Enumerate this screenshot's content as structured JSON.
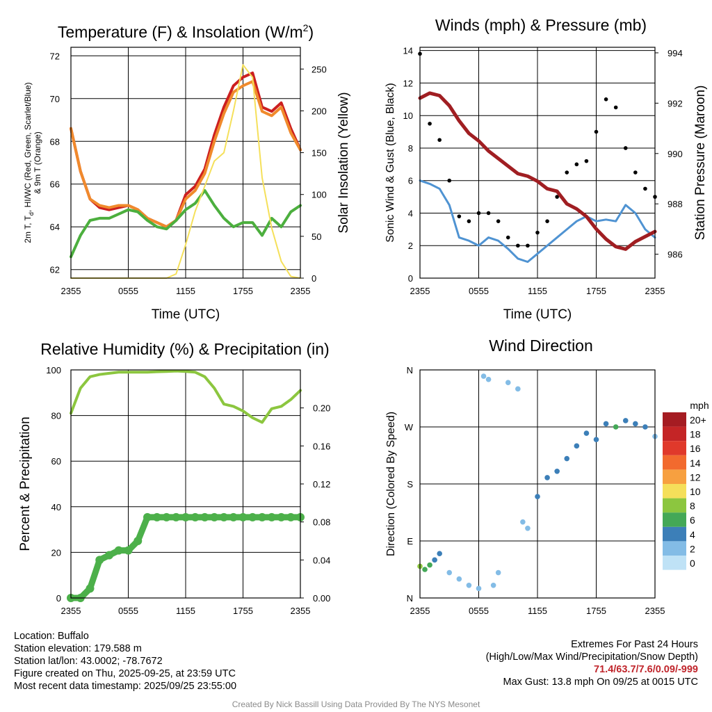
{
  "chart_data": [
    {
      "type": "line",
      "title": "Temperature (F) & Insolation (W/m²)",
      "xlabel": "Time (UTC)",
      "ylabel": "2m T, T_d, HI/WC (Red, Green, Scarlet/Blue) & 9m T (Orange)",
      "ylabel_lines": [
        "2m T, T",
        "d",
        ", HI/WC (Red, Green, Scarlet/Blue)",
        "& 9m T (Orange)"
      ],
      "y2label": "Solar Insolation (Yellow)",
      "title_main": "Temperature (F) & Insolation (W/m",
      "title_sup": "2",
      "title_end": ")",
      "ylim": [
        61.6,
        72.4
      ],
      "y2lim": [
        0,
        276
      ],
      "yticks": [
        62,
        64,
        66,
        68,
        70,
        72
      ],
      "y2ticks": [
        0,
        50,
        100,
        150,
        200,
        250
      ],
      "xticks": [
        "2355",
        "0555",
        "1155",
        "1755",
        "2355"
      ],
      "x": [
        0,
        1,
        2,
        3,
        4,
        5,
        6,
        7,
        8,
        9,
        10,
        11,
        12,
        13,
        14,
        15,
        16,
        17,
        18,
        19,
        20,
        21,
        22,
        23,
        24
      ],
      "series": [
        {
          "name": "2m T",
          "color": "#cc1f1f",
          "axis": "left",
          "values": [
            68.6,
            66.6,
            65.3,
            64.9,
            64.8,
            64.9,
            65.0,
            64.8,
            64.4,
            64.2,
            64.0,
            64.3,
            65.5,
            65.9,
            66.7,
            68.3,
            69.6,
            70.6,
            71.0,
            71.2,
            69.6,
            69.4,
            69.8,
            68.6,
            67.6
          ]
        },
        {
          "name": "9m T",
          "color": "#f08a2c",
          "axis": "left",
          "values": [
            68.6,
            66.6,
            65.3,
            65.0,
            64.9,
            65.0,
            65.0,
            64.8,
            64.4,
            64.2,
            64.0,
            64.3,
            65.3,
            65.7,
            66.5,
            68.0,
            69.3,
            70.3,
            70.6,
            70.8,
            69.4,
            69.2,
            69.6,
            68.4,
            67.6
          ]
        },
        {
          "name": "2m Td",
          "color": "#4caf3e",
          "axis": "left",
          "values": [
            62.6,
            63.6,
            64.3,
            64.4,
            64.4,
            64.6,
            64.8,
            64.7,
            64.3,
            64.0,
            63.9,
            64.3,
            64.8,
            65.1,
            65.7,
            65.0,
            64.4,
            64.0,
            64.2,
            64.2,
            63.6,
            64.4,
            64.0,
            64.7,
            65.0
          ]
        },
        {
          "name": "Solar Insolation",
          "color": "#f5e05a",
          "axis": "right",
          "values": [
            0,
            0,
            0,
            0,
            0,
            0,
            0,
            0,
            0,
            0,
            0,
            5,
            40,
            80,
            110,
            140,
            150,
            200,
            255,
            240,
            120,
            60,
            20,
            2,
            0
          ]
        }
      ]
    },
    {
      "type": "line",
      "title": "Winds (mph) & Pressure (mb)",
      "xlabel": "Time (UTC)",
      "ylabel": "Sonic Wind & Gust (Blue, Black)",
      "y2label": "Station Pressure (Maroon)",
      "ylim": [
        0,
        14.2
      ],
      "y2lim": [
        985.05,
        994.22
      ],
      "yticks": [
        0,
        2,
        4,
        6,
        8,
        10,
        12,
        14
      ],
      "y2ticks": [
        986,
        988,
        990,
        992,
        994
      ],
      "xticks": [
        "2355",
        "0555",
        "1155",
        "1755",
        "2355"
      ],
      "x": [
        0,
        1,
        2,
        3,
        4,
        5,
        6,
        7,
        8,
        9,
        10,
        11,
        12,
        13,
        14,
        15,
        16,
        17,
        18,
        19,
        20,
        21,
        22,
        23,
        24
      ],
      "series": [
        {
          "name": "Sonic Wind",
          "color": "#4f93d2",
          "axis": "left",
          "values": [
            6.0,
            5.8,
            5.5,
            4.5,
            2.5,
            2.3,
            2.0,
            2.5,
            2.3,
            1.8,
            1.2,
            1.0,
            1.5,
            2.0,
            2.5,
            3.0,
            3.5,
            3.8,
            3.5,
            3.6,
            3.5,
            4.5,
            4.0,
            3.0,
            2.5
          ]
        },
        {
          "name": "Gust",
          "color": "#000000",
          "axis": "left",
          "values": [
            13.8,
            9.5,
            8.5,
            6.0,
            3.8,
            3.5,
            4.0,
            4.0,
            3.5,
            2.5,
            2.0,
            2.0,
            2.8,
            3.5,
            5.0,
            6.5,
            7.0,
            7.2,
            9.0,
            11.0,
            10.5,
            8.0,
            6.5,
            5.5,
            5.0
          ]
        },
        {
          "name": "Station Pressure",
          "color": "#a01e22",
          "axis": "right",
          "values": [
            992.2,
            992.4,
            992.3,
            991.9,
            991.3,
            990.8,
            990.5,
            990.1,
            989.8,
            989.5,
            989.2,
            989.1,
            988.9,
            988.6,
            988.5,
            988.0,
            987.8,
            987.5,
            987.0,
            986.6,
            986.3,
            986.2,
            986.5,
            986.7,
            986.9
          ]
        }
      ]
    },
    {
      "type": "line",
      "title": "Relative Humidity (%) & Precipitation (in)",
      "xlabel": "",
      "ylabel": "Percent & Precipitation",
      "ylim": [
        0,
        100
      ],
      "y2lim": [
        0,
        0.24
      ],
      "yticks": [
        0,
        20,
        40,
        60,
        80,
        100
      ],
      "y2ticks": [
        "0.00",
        "0.04",
        "0.08",
        "0.12",
        "0.16",
        "0.20"
      ],
      "xticks": [
        "2355",
        "0555",
        "1155",
        "1755",
        "2355"
      ],
      "x": [
        0,
        1,
        2,
        3,
        4,
        5,
        6,
        7,
        8,
        9,
        10,
        11,
        12,
        13,
        14,
        15,
        16,
        17,
        18,
        19,
        20,
        21,
        22,
        23,
        24
      ],
      "series": [
        {
          "name": "Relative Humidity",
          "color": "#8cc63f",
          "axis": "left",
          "values": [
            81,
            92,
            97,
            98,
            98.5,
            99,
            99,
            99,
            99,
            99.2,
            99.3,
            99.5,
            99.3,
            99,
            97,
            92,
            85,
            84,
            82,
            79,
            77,
            83,
            84,
            87,
            91
          ]
        },
        {
          "name": "Precipitation",
          "color": "#4cb04a",
          "axis": "right",
          "values": [
            0,
            0,
            0.01,
            0.04,
            0.045,
            0.05,
            0.05,
            0.06,
            0.085,
            0.085,
            0.085,
            0.085,
            0.085,
            0.085,
            0.085,
            0.085,
            0.085,
            0.085,
            0.085,
            0.085,
            0.085,
            0.085,
            0.085,
            0.085,
            0.085
          ]
        }
      ]
    },
    {
      "type": "scatter",
      "title": "Wind Direction",
      "xlabel": "",
      "ylabel": "Direction (Colored By Speed)",
      "ylim": [
        0,
        360
      ],
      "yticks": [
        "N",
        "E",
        "S",
        "W",
        "N"
      ],
      "xticks": [
        "2355",
        "0555",
        "1155",
        "1755",
        "2355"
      ],
      "x": [
        0,
        0.5,
        1,
        1.5,
        2,
        3,
        4,
        5,
        6,
        6.5,
        7,
        7.5,
        8,
        9,
        10,
        10.5,
        11,
        12,
        13,
        14,
        15,
        16,
        17,
        18,
        19,
        20,
        21,
        22,
        23,
        24
      ],
      "direction": [
        50,
        45,
        52,
        60,
        70,
        40,
        30,
        20,
        15,
        350,
        345,
        20,
        40,
        340,
        330,
        120,
        110,
        160,
        190,
        200,
        220,
        240,
        260,
        250,
        275,
        270,
        280,
        275,
        270,
        255
      ],
      "speed": [
        7,
        6,
        5,
        4,
        3,
        2,
        2,
        2,
        2,
        1,
        1,
        2,
        1,
        1,
        1,
        2,
        2,
        3,
        3,
        4,
        4,
        3,
        4,
        4,
        4,
        5,
        4,
        3,
        3,
        2
      ],
      "legend_title": "mph",
      "legend_labels": [
        "20+",
        "18",
        "16",
        "14",
        "12",
        "10",
        "8",
        "6",
        "4",
        "2",
        "0"
      ],
      "legend_colors": [
        "#a51c22",
        "#c42526",
        "#e0392b",
        "#f26a2e",
        "#f7a040",
        "#f5df5a",
        "#8cc63f",
        "#44a857",
        "#3c7fb8",
        "#83bce6",
        "#bfe2f6"
      ]
    }
  ],
  "info": {
    "location": "Location: Buffalo",
    "elevation": "Station elevation: 179.588 m",
    "latlon": "Station lat/lon: 43.0002; -78.7672",
    "created": "Figure created on Thu, 2025-09-25, at 23:59 UTC",
    "recent": "Most recent data timestamp: 2025/09/25 23:55:00"
  },
  "extremes": {
    "title": "Extremes For Past 24 Hours",
    "subtitle": "(High/Low/Max Wind/Precipitation/Snow Depth)",
    "values": "71.4/63.7/7.6/0.09/-999",
    "max_gust": "Max Gust: 13.8 mph On 09/25 at 0015 UTC"
  },
  "credit": "Created By Nick Bassill Using Data Provided By The NYS Mesonet"
}
